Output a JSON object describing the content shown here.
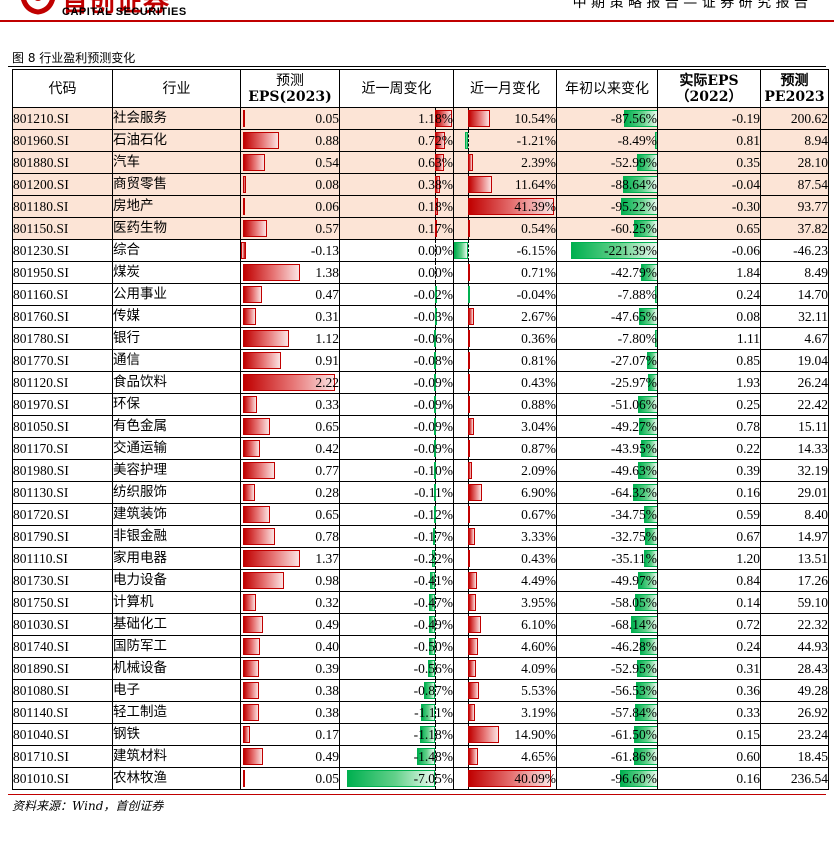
{
  "header": {
    "logo_cn": "首创证券",
    "logo_en": "CAPITAL SECURITIES",
    "right_text": "中 期 策 略 报 告  — 证 券 研 究 报 告"
  },
  "figure": {
    "title": "图 8 行业盈利预测变化",
    "source": "资料来源：Wind，首创证券"
  },
  "table": {
    "headers": {
      "code": "代码",
      "industry": "行业",
      "eps_pred_line1": "预测",
      "eps_pred_line2": "EPS(2023)",
      "week": "近一周变化",
      "month": "近一月变化",
      "ytd": "年初以来变化",
      "eps_actual_line1": "实际EPS",
      "eps_actual_line2": "（2022）",
      "pe_line1": "预测",
      "pe_line2": "PE2023"
    },
    "colors": {
      "highlight_row": "#fce4d6",
      "positive_bar": "#c00000",
      "negative_bar": "#00b050"
    },
    "rows": [
      {
        "code": "801210.SI",
        "industry": "社会服务",
        "eps": 0.05,
        "eps_text": "0.05",
        "week": 1.18,
        "week_text": "1.18%",
        "month": 10.54,
        "month_text": "10.54%",
        "ytd": -87.56,
        "ytd_text": "-87.56%",
        "actual": "-0.19",
        "pe": "200.62",
        "highlight": true
      },
      {
        "code": "801960.SI",
        "industry": "石油石化",
        "eps": 0.88,
        "eps_text": "0.88",
        "week": 0.72,
        "week_text": "0.72%",
        "month": -1.21,
        "month_text": "-1.21%",
        "ytd": -8.49,
        "ytd_text": "-8.49%",
        "actual": "0.81",
        "pe": "8.94",
        "highlight": true
      },
      {
        "code": "801880.SI",
        "industry": "汽车",
        "eps": 0.54,
        "eps_text": "0.54",
        "week": 0.63,
        "week_text": "0.63%",
        "month": 2.39,
        "month_text": "2.39%",
        "ytd": -52.99,
        "ytd_text": "-52.99%",
        "actual": "0.35",
        "pe": "28.10",
        "highlight": true
      },
      {
        "code": "801200.SI",
        "industry": "商贸零售",
        "eps": 0.08,
        "eps_text": "0.08",
        "week": 0.38,
        "week_text": "0.38%",
        "month": 11.64,
        "month_text": "11.64%",
        "ytd": -88.64,
        "ytd_text": "-88.64%",
        "actual": "-0.04",
        "pe": "87.54",
        "highlight": true
      },
      {
        "code": "801180.SI",
        "industry": "房地产",
        "eps": 0.06,
        "eps_text": "0.06",
        "week": 0.18,
        "week_text": "0.18%",
        "month": 41.39,
        "month_text": "41.39%",
        "ytd": -95.22,
        "ytd_text": "-95.22%",
        "actual": "-0.30",
        "pe": "93.77",
        "highlight": true
      },
      {
        "code": "801150.SI",
        "industry": "医药生物",
        "eps": 0.57,
        "eps_text": "0.57",
        "week": 0.17,
        "week_text": "0.17%",
        "month": 0.54,
        "month_text": "0.54%",
        "ytd": -60.25,
        "ytd_text": "-60.25%",
        "actual": "0.65",
        "pe": "37.82",
        "highlight": true
      },
      {
        "code": "801230.SI",
        "industry": "综合",
        "eps": -0.13,
        "eps_text": "-0.13",
        "week": 0.0,
        "week_text": "0.00%",
        "month": -6.15,
        "month_text": "-6.15%",
        "ytd": -221.39,
        "ytd_text": "-221.39%",
        "actual": "-0.06",
        "pe": "-46.23",
        "highlight": false
      },
      {
        "code": "801950.SI",
        "industry": "煤炭",
        "eps": 1.38,
        "eps_text": "1.38",
        "week": 0.0,
        "week_text": "0.00%",
        "month": 0.71,
        "month_text": "0.71%",
        "ytd": -42.79,
        "ytd_text": "-42.79%",
        "actual": "1.84",
        "pe": "8.49",
        "highlight": false
      },
      {
        "code": "801160.SI",
        "industry": "公用事业",
        "eps": 0.47,
        "eps_text": "0.47",
        "week": -0.02,
        "week_text": "-0.02%",
        "month": -0.04,
        "month_text": "-0.04%",
        "ytd": -7.88,
        "ytd_text": "-7.88%",
        "actual": "0.24",
        "pe": "14.70",
        "highlight": false
      },
      {
        "code": "801760.SI",
        "industry": "传媒",
        "eps": 0.31,
        "eps_text": "0.31",
        "week": -0.03,
        "week_text": "-0.03%",
        "month": 2.67,
        "month_text": "2.67%",
        "ytd": -47.65,
        "ytd_text": "-47.65%",
        "actual": "0.08",
        "pe": "32.11",
        "highlight": false
      },
      {
        "code": "801780.SI",
        "industry": "银行",
        "eps": 1.12,
        "eps_text": "1.12",
        "week": -0.06,
        "week_text": "-0.06%",
        "month": 0.36,
        "month_text": "0.36%",
        "ytd": -7.8,
        "ytd_text": "-7.80%",
        "actual": "1.11",
        "pe": "4.67",
        "highlight": false
      },
      {
        "code": "801770.SI",
        "industry": "通信",
        "eps": 0.91,
        "eps_text": "0.91",
        "week": -0.08,
        "week_text": "-0.08%",
        "month": 0.81,
        "month_text": "0.81%",
        "ytd": -27.07,
        "ytd_text": "-27.07%",
        "actual": "0.85",
        "pe": "19.04",
        "highlight": false
      },
      {
        "code": "801120.SI",
        "industry": "食品饮料",
        "eps": 2.22,
        "eps_text": "2.22",
        "week": -0.09,
        "week_text": "-0.09%",
        "month": 0.43,
        "month_text": "0.43%",
        "ytd": -25.97,
        "ytd_text": "-25.97%",
        "actual": "1.93",
        "pe": "26.24",
        "highlight": false
      },
      {
        "code": "801970.SI",
        "industry": "环保",
        "eps": 0.33,
        "eps_text": "0.33",
        "week": -0.09,
        "week_text": "-0.09%",
        "month": 0.88,
        "month_text": "0.88%",
        "ytd": -51.06,
        "ytd_text": "-51.06%",
        "actual": "0.25",
        "pe": "22.42",
        "highlight": false
      },
      {
        "code": "801050.SI",
        "industry": "有色金属",
        "eps": 0.65,
        "eps_text": "0.65",
        "week": -0.09,
        "week_text": "-0.09%",
        "month": 3.04,
        "month_text": "3.04%",
        "ytd": -49.27,
        "ytd_text": "-49.27%",
        "actual": "0.78",
        "pe": "15.11",
        "highlight": false
      },
      {
        "code": "801170.SI",
        "industry": "交通运输",
        "eps": 0.42,
        "eps_text": "0.42",
        "week": -0.09,
        "week_text": "-0.09%",
        "month": 0.87,
        "month_text": "0.87%",
        "ytd": -43.95,
        "ytd_text": "-43.95%",
        "actual": "0.22",
        "pe": "14.33",
        "highlight": false
      },
      {
        "code": "801980.SI",
        "industry": "美容护理",
        "eps": 0.77,
        "eps_text": "0.77",
        "week": -0.1,
        "week_text": "-0.10%",
        "month": 2.09,
        "month_text": "2.09%",
        "ytd": -49.63,
        "ytd_text": "-49.63%",
        "actual": "0.39",
        "pe": "32.19",
        "highlight": false
      },
      {
        "code": "801130.SI",
        "industry": "纺织服饰",
        "eps": 0.28,
        "eps_text": "0.28",
        "week": -0.11,
        "week_text": "-0.11%",
        "month": 6.9,
        "month_text": "6.90%",
        "ytd": -64.32,
        "ytd_text": "-64.32%",
        "actual": "0.16",
        "pe": "29.01",
        "highlight": false
      },
      {
        "code": "801720.SI",
        "industry": "建筑装饰",
        "eps": 0.65,
        "eps_text": "0.65",
        "week": -0.12,
        "week_text": "-0.12%",
        "month": 0.67,
        "month_text": "0.67%",
        "ytd": -34.75,
        "ytd_text": "-34.75%",
        "actual": "0.59",
        "pe": "8.40",
        "highlight": false
      },
      {
        "code": "801790.SI",
        "industry": "非银金融",
        "eps": 0.78,
        "eps_text": "0.78",
        "week": -0.17,
        "week_text": "-0.17%",
        "month": 3.33,
        "month_text": "3.33%",
        "ytd": -32.75,
        "ytd_text": "-32.75%",
        "actual": "0.67",
        "pe": "14.97",
        "highlight": false
      },
      {
        "code": "801110.SI",
        "industry": "家用电器",
        "eps": 1.37,
        "eps_text": "1.37",
        "week": -0.22,
        "week_text": "-0.22%",
        "month": 0.43,
        "month_text": "0.43%",
        "ytd": -35.11,
        "ytd_text": "-35.11%",
        "actual": "1.20",
        "pe": "13.51",
        "highlight": false
      },
      {
        "code": "801730.SI",
        "industry": "电力设备",
        "eps": 0.98,
        "eps_text": "0.98",
        "week": -0.41,
        "week_text": "-0.41%",
        "month": 4.49,
        "month_text": "4.49%",
        "ytd": -49.97,
        "ytd_text": "-49.97%",
        "actual": "0.84",
        "pe": "17.26",
        "highlight": false
      },
      {
        "code": "801750.SI",
        "industry": "计算机",
        "eps": 0.32,
        "eps_text": "0.32",
        "week": -0.47,
        "week_text": "-0.47%",
        "month": 3.95,
        "month_text": "3.95%",
        "ytd": -58.05,
        "ytd_text": "-58.05%",
        "actual": "0.14",
        "pe": "59.10",
        "highlight": false
      },
      {
        "code": "801030.SI",
        "industry": "基础化工",
        "eps": 0.49,
        "eps_text": "0.49",
        "week": -0.49,
        "week_text": "-0.49%",
        "month": 6.1,
        "month_text": "6.10%",
        "ytd": -68.14,
        "ytd_text": "-68.14%",
        "actual": "0.72",
        "pe": "22.32",
        "highlight": false
      },
      {
        "code": "801740.SI",
        "industry": "国防军工",
        "eps": 0.4,
        "eps_text": "0.40",
        "week": -0.5,
        "week_text": "-0.50%",
        "month": 4.6,
        "month_text": "4.60%",
        "ytd": -46.28,
        "ytd_text": "-46.28%",
        "actual": "0.24",
        "pe": "44.93",
        "highlight": false
      },
      {
        "code": "801890.SI",
        "industry": "机械设备",
        "eps": 0.39,
        "eps_text": "0.39",
        "week": -0.56,
        "week_text": "-0.56%",
        "month": 4.09,
        "month_text": "4.09%",
        "ytd": -52.95,
        "ytd_text": "-52.95%",
        "actual": "0.31",
        "pe": "28.43",
        "highlight": false
      },
      {
        "code": "801080.SI",
        "industry": "电子",
        "eps": 0.38,
        "eps_text": "0.38",
        "week": -0.87,
        "week_text": "-0.87%",
        "month": 5.53,
        "month_text": "5.53%",
        "ytd": -56.53,
        "ytd_text": "-56.53%",
        "actual": "0.36",
        "pe": "49.28",
        "highlight": false
      },
      {
        "code": "801140.SI",
        "industry": "轻工制造",
        "eps": 0.38,
        "eps_text": "0.38",
        "week": -1.11,
        "week_text": "-1.11%",
        "month": 3.19,
        "month_text": "3.19%",
        "ytd": -57.84,
        "ytd_text": "-57.84%",
        "actual": "0.33",
        "pe": "26.92",
        "highlight": false
      },
      {
        "code": "801040.SI",
        "industry": "钢铁",
        "eps": 0.17,
        "eps_text": "0.17",
        "week": -1.18,
        "week_text": "-1.18%",
        "month": 14.9,
        "month_text": "14.90%",
        "ytd": -61.5,
        "ytd_text": "-61.50%",
        "actual": "0.15",
        "pe": "23.24",
        "highlight": false
      },
      {
        "code": "801710.SI",
        "industry": "建筑材料",
        "eps": 0.49,
        "eps_text": "0.49",
        "week": -1.48,
        "week_text": "-1.48%",
        "month": 4.65,
        "month_text": "4.65%",
        "ytd": -61.86,
        "ytd_text": "-61.86%",
        "actual": "0.60",
        "pe": "18.45",
        "highlight": false
      },
      {
        "code": "801010.SI",
        "industry": "农林牧渔",
        "eps": 0.05,
        "eps_text": "0.05",
        "week": -7.05,
        "week_text": "-7.05%",
        "month": 40.09,
        "month_text": "40.09%",
        "ytd": -96.6,
        "ytd_text": "-96.60%",
        "actual": "0.16",
        "pe": "236.54",
        "highlight": false
      }
    ]
  }
}
